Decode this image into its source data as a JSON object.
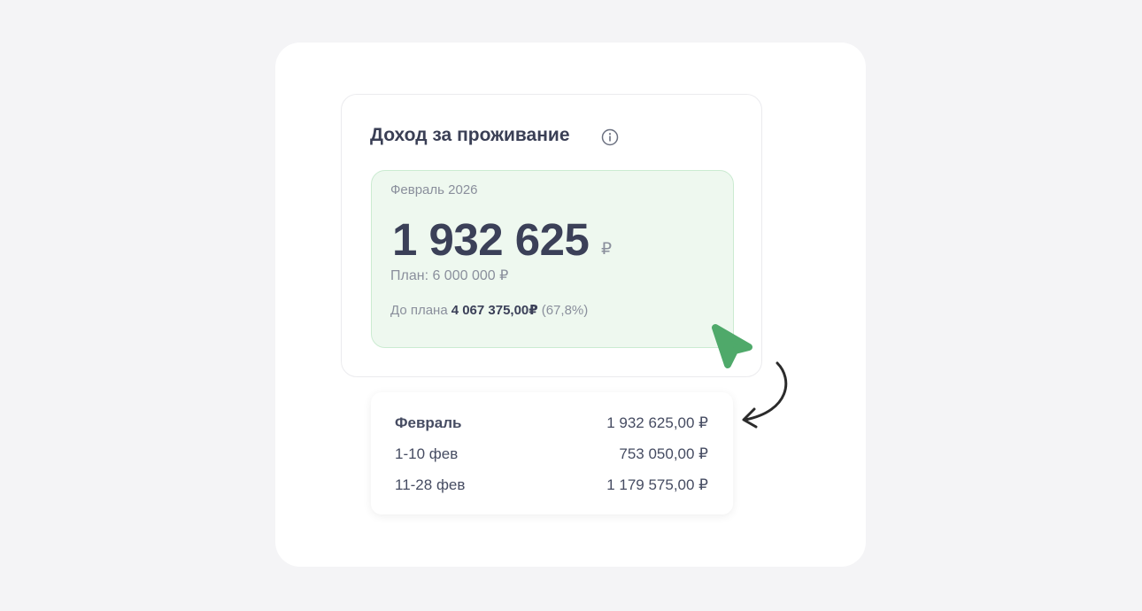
{
  "widget": {
    "title": "Доход за проживание",
    "info_icon": "info-circle-icon",
    "period": "Февраль 2026",
    "amount": "1 932 625",
    "currency": "₽",
    "plan": "План: 6 000 000 ₽",
    "to_plan_label": "До плана",
    "to_plan_value": "4 067 375,00₽",
    "to_plan_percent": "(67,8%)"
  },
  "breakdown": {
    "rows": [
      {
        "label": "Февраль",
        "value": "1 932 625,00 ₽"
      },
      {
        "label": "1-10 фев",
        "value": "753 050,00 ₽"
      },
      {
        "label": "11-28 фев",
        "value": "1 179 575,00 ₽"
      }
    ]
  },
  "colors": {
    "accent_green": "#4fa96a",
    "text_dark": "#3b4058",
    "card_bg": "#eef8ef"
  }
}
